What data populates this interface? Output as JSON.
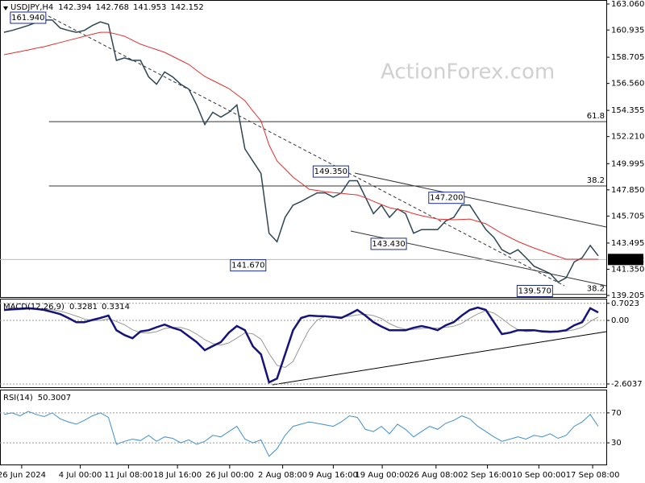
{
  "chart_data": [
    {
      "type": "line",
      "title": "USDJPY,H4",
      "ohlc": [
        142.394,
        142.768,
        141.953,
        142.152
      ],
      "watermark": "ActionForex.com",
      "x": [
        0,
        1,
        2,
        3,
        4,
        5,
        6,
        7,
        8,
        9,
        10,
        11,
        12,
        13,
        14,
        15,
        16,
        17,
        18,
        19,
        20,
        21,
        22,
        23,
        24,
        25,
        26,
        27,
        28,
        29,
        30,
        31,
        32,
        33,
        34,
        35,
        36,
        37,
        38,
        39,
        40,
        41,
        42,
        43,
        44,
        45,
        46,
        47,
        48,
        49,
        50,
        51,
        52,
        53,
        54,
        55,
        56,
        57,
        58,
        59,
        60,
        61,
        62,
        63,
        64,
        65,
        66,
        67,
        68,
        69,
        70,
        71,
        72,
        73,
        74
      ],
      "xlim": [
        -0.5,
        75
      ],
      "ylim": [
        139.01,
        163.39
      ],
      "yticks": [
        {
          "value": 163.06,
          "label": "163.060"
        },
        {
          "value": 160.935,
          "label": "160.935"
        },
        {
          "value": 158.705,
          "label": "158.705"
        },
        {
          "value": 156.56,
          "label": "156.560"
        },
        {
          "value": 154.355,
          "label": "154.355"
        },
        {
          "value": 152.21,
          "label": "152.210"
        },
        {
          "value": 149.995,
          "label": "149.995"
        },
        {
          "value": 147.85,
          "label": "147.850"
        },
        {
          "value": 145.705,
          "label": "145.705"
        },
        {
          "value": 143.495,
          "label": "143.495"
        },
        {
          "value": 141.35,
          "label": "141.350"
        },
        {
          "value": 139.205,
          "label": "139.205"
        }
      ],
      "grid": false,
      "last": 142.152,
      "series": [
        {
          "color": "#2c4656",
          "values": [
            160.75,
            160.9,
            161.1,
            161.3,
            161.55,
            161.75,
            161.75,
            161.1,
            160.9,
            160.75,
            160.9,
            161.3,
            161.6,
            161.4,
            158.45,
            158.65,
            158.45,
            158.45,
            157.1,
            156.5,
            157.5,
            157.1,
            156.5,
            156.1,
            154.8,
            153.2,
            154.2,
            153.8,
            154.2,
            154.8,
            151.2,
            150.2,
            149.2,
            144.3,
            143.6,
            145.6,
            146.6,
            146.9,
            147.25,
            147.6,
            147.6,
            147.25,
            147.6,
            148.6,
            148.6,
            147.25,
            145.9,
            146.6,
            145.6,
            146.3,
            145.9,
            144.3,
            144.6,
            144.6,
            144.6,
            145.3,
            145.6,
            146.6,
            146.6,
            145.6,
            144.6,
            143.95,
            142.95,
            142.6,
            142.95,
            142.3,
            141.6,
            141.3,
            141.0,
            140.3,
            140.65,
            141.95,
            142.3,
            143.3,
            142.45
          ]
        },
        {
          "color": "#e0302f",
          "values": [
            158.91,
            159.04,
            159.17,
            159.3,
            159.44,
            159.57,
            159.74,
            159.91,
            160.08,
            160.25,
            160.42,
            160.59,
            160.75,
            160.75,
            160.6,
            160.42,
            160.1,
            159.77,
            159.55,
            159.33,
            159.11,
            158.78,
            158.45,
            158.12,
            157.62,
            157.13,
            156.8,
            156.47,
            156.14,
            155.65,
            155.15,
            154.3,
            153.5,
            151.53,
            150.21,
            149.55,
            148.89,
            148.4,
            147.9,
            147.8,
            147.7,
            147.63,
            147.57,
            147.5,
            147.44,
            147.2,
            146.91,
            146.65,
            146.39,
            146.25,
            146.12,
            145.9,
            145.73,
            145.6,
            145.46,
            145.43,
            145.4,
            145.43,
            145.46,
            145.27,
            145.07,
            144.68,
            144.28,
            143.95,
            143.62,
            143.35,
            143.09,
            142.86,
            142.63,
            142.4,
            142.17,
            142.17,
            142.17,
            142.17,
            142.17
          ]
        }
      ],
      "levels": [
        {
          "label": "61.8",
          "value": 153.43,
          "x": 5.6
        },
        {
          "label": "38.2",
          "value": 148.17,
          "x": 5.6
        },
        {
          "label": "38.2",
          "value": 139.3,
          "x": 64
        }
      ],
      "annotations": [
        {
          "label": "161.940",
          "value": 161.94,
          "x": 3
        },
        {
          "label": "149.350",
          "value": 149.35,
          "x": 40.7
        },
        {
          "label": "147.200",
          "value": 147.2,
          "x": 55.1
        },
        {
          "label": "143.430",
          "value": 143.43,
          "x": 47.9
        },
        {
          "label": "141.670",
          "value": 141.67,
          "x": 30.4
        },
        {
          "label": "139.570",
          "value": 139.57,
          "x": 66.1
        }
      ]
    },
    {
      "type": "line",
      "title": "MACD(12,26,9)",
      "readings": [
        0.3281,
        0.3314
      ],
      "x": [
        0,
        1,
        2,
        3,
        4,
        5,
        6,
        7,
        8,
        9,
        10,
        11,
        12,
        13,
        14,
        15,
        16,
        17,
        18,
        19,
        20,
        21,
        22,
        23,
        24,
        25,
        26,
        27,
        28,
        29,
        30,
        31,
        32,
        33,
        34,
        35,
        36,
        37,
        38,
        39,
        40,
        41,
        42,
        43,
        44,
        45,
        46,
        47,
        48,
        49,
        50,
        51,
        52,
        53,
        54,
        55,
        56,
        57,
        58,
        59,
        60,
        61,
        62,
        63,
        64,
        65,
        66,
        67,
        68,
        69,
        70,
        71,
        72,
        73,
        74
      ],
      "xlim": [
        -0.5,
        75
      ],
      "ylim": [
        -2.77,
        0.86
      ],
      "yticks": [
        0.7023,
        {
          "value": 0,
          "label": "0.00"
        },
        -2.6037
      ],
      "grid": true,
      "series": [
        {
          "color": "#999999",
          "values": [
            0.4,
            0.42,
            0.44,
            0.46,
            0.47,
            0.47,
            0.44,
            0.38,
            0.29,
            0.18,
            0.06,
            0.0,
            0.0,
            0.06,
            -0.04,
            -0.18,
            -0.38,
            -0.5,
            -0.52,
            -0.46,
            -0.33,
            -0.29,
            -0.29,
            -0.38,
            -0.56,
            -0.79,
            -0.95,
            -1.01,
            -0.92,
            -0.72,
            -0.51,
            -0.55,
            -0.77,
            -1.35,
            -1.84,
            -1.93,
            -1.68,
            -1.0,
            -0.37,
            0.02,
            0.16,
            0.17,
            0.15,
            0.17,
            0.23,
            0.25,
            0.2,
            0.08,
            -0.13,
            -0.28,
            -0.36,
            -0.37,
            -0.33,
            -0.31,
            -0.31,
            -0.28,
            -0.24,
            -0.12,
            0.09,
            0.27,
            0.4,
            0.3,
            0.08,
            -0.18,
            -0.38,
            -0.46,
            -0.43,
            -0.41,
            -0.43,
            -0.44,
            -0.44,
            -0.38,
            -0.28,
            -0.04,
            0.14
          ]
        },
        {
          "color": "#14147a",
          "values": [
            0.43,
            0.46,
            0.48,
            0.5,
            0.47,
            0.43,
            0.35,
            0.26,
            0.1,
            -0.07,
            -0.07,
            0.02,
            0.1,
            0.2,
            -0.4,
            -0.6,
            -0.73,
            -0.45,
            -0.4,
            -0.28,
            -0.17,
            -0.3,
            -0.4,
            -0.65,
            -0.89,
            -1.22,
            -1.05,
            -0.89,
            -0.5,
            -0.23,
            -0.4,
            -1.06,
            -1.39,
            -2.54,
            -2.38,
            -1.39,
            -0.4,
            0.1,
            0.2,
            0.18,
            0.17,
            0.14,
            0.1,
            0.26,
            0.43,
            0.2,
            -0.07,
            -0.25,
            -0.4,
            -0.4,
            -0.4,
            -0.3,
            -0.23,
            -0.3,
            -0.4,
            -0.2,
            -0.07,
            0.2,
            0.43,
            0.53,
            0.43,
            -0.07,
            -0.56,
            -0.5,
            -0.4,
            -0.4,
            -0.4,
            -0.45,
            -0.47,
            -0.45,
            -0.4,
            -0.2,
            -0.07,
            0.5,
            0.33
          ]
        }
      ]
    },
    {
      "type": "line",
      "title": "RSI(14)",
      "readings": [
        50.3007
      ],
      "x": [
        0,
        1,
        2,
        3,
        4,
        5,
        6,
        7,
        8,
        9,
        10,
        11,
        12,
        13,
        14,
        15,
        16,
        17,
        18,
        19,
        20,
        21,
        22,
        23,
        24,
        25,
        26,
        27,
        28,
        29,
        30,
        31,
        32,
        33,
        34,
        35,
        36,
        37,
        38,
        39,
        40,
        41,
        42,
        43,
        44,
        45,
        46,
        47,
        48,
        49,
        50,
        51,
        52,
        53,
        54,
        55,
        56,
        57,
        58,
        59,
        60,
        61,
        62,
        63,
        64,
        65,
        66,
        67,
        68,
        69,
        70,
        71,
        72,
        73,
        74
      ],
      "xlim": [
        -0.5,
        75
      ],
      "ylim": [
        0,
        100
      ],
      "yticks": [
        70,
        30
      ],
      "grid": true,
      "xticks": [
        {
          "value": 2.2,
          "label": "26 Jun 2024"
        },
        {
          "value": 9.5,
          "label": "4 Jul 00:00"
        },
        {
          "value": 15.5,
          "label": "11 Jul 08:00"
        },
        {
          "value": 21.6,
          "label": "18 Jul 16:00"
        },
        {
          "value": 28.1,
          "label": "26 Jul 00:00"
        },
        {
          "value": 34.7,
          "label": "2 Aug 08:00"
        },
        {
          "value": 41,
          "label": "9 Aug 16:00"
        },
        {
          "value": 47.1,
          "label": "19 Aug 00:00"
        },
        {
          "value": 53.8,
          "label": "26 Aug 08:00"
        },
        {
          "value": 60.2,
          "label": "2 Sep 16:00"
        },
        {
          "value": 66.6,
          "label": "10 Sep 00:00"
        },
        {
          "value": 73.3,
          "label": "17 Sep 08:00"
        }
      ],
      "series": [
        {
          "color": "#3f8fd0",
          "values": [
            68,
            70,
            66,
            72,
            68,
            65,
            70,
            62,
            58,
            55,
            60,
            66,
            70,
            64,
            28,
            32,
            35,
            33,
            40,
            32,
            38,
            36,
            30,
            34,
            28,
            32,
            40,
            38,
            45,
            52,
            35,
            30,
            34,
            12,
            22,
            40,
            52,
            55,
            58,
            56,
            54,
            52,
            58,
            66,
            64,
            48,
            45,
            52,
            42,
            55,
            48,
            38,
            45,
            52,
            48,
            56,
            60,
            66,
            62,
            52,
            45,
            38,
            32,
            35,
            38,
            35,
            40,
            38,
            42,
            36,
            40,
            52,
            58,
            68,
            52
          ]
        }
      ]
    }
  ]
}
